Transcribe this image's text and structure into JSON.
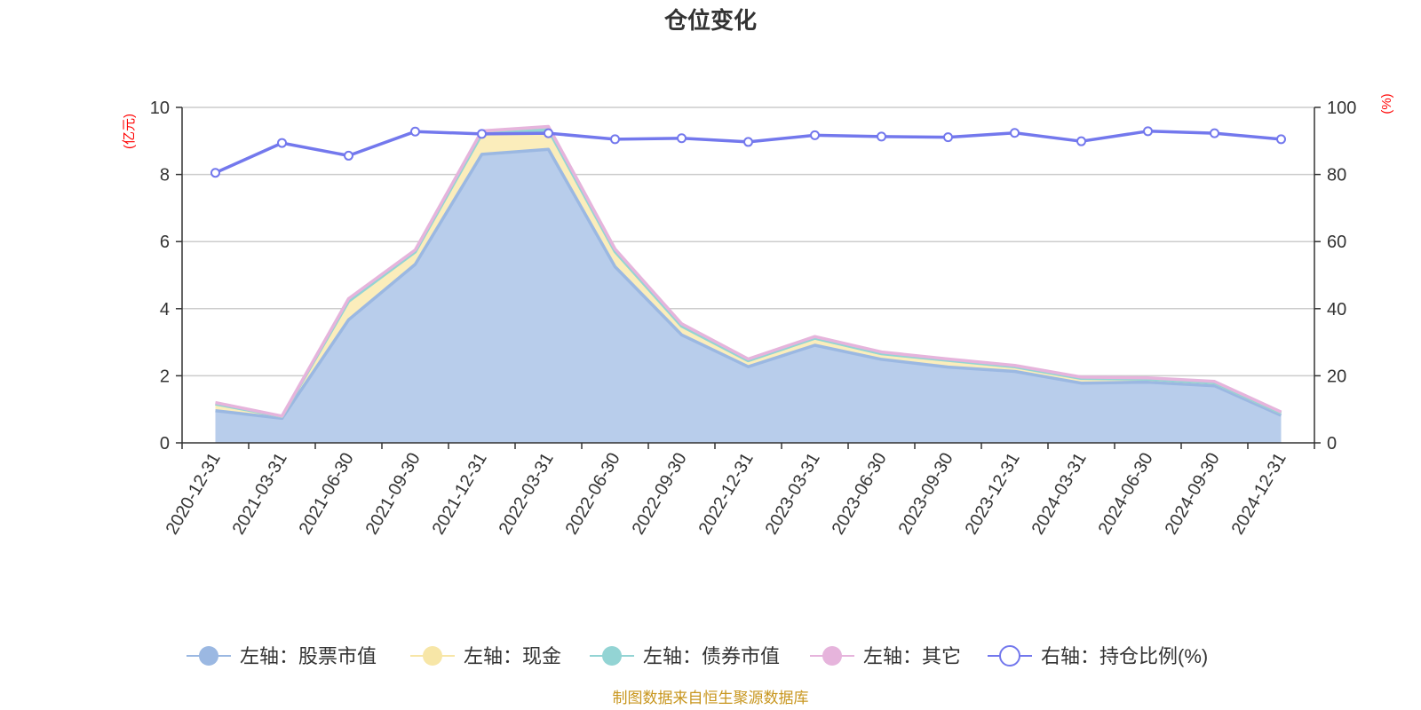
{
  "title": "仓位变化",
  "source": "制图数据来自恒生聚源数据库",
  "colors": {
    "stock": "#9bb8e2",
    "stock_fill": "#b8cdeb",
    "cash": "#f7e6a7",
    "cash_fill": "#fbedbb",
    "bond": "#93d4d4",
    "other": "#e6b4dc",
    "ratio": "#7378ed",
    "unit": "#ff0000"
  },
  "chart_data": {
    "type": "area",
    "title": "仓位变化",
    "categories": [
      "2020-12-31",
      "2021-03-31",
      "2021-06-30",
      "2021-09-30",
      "2021-12-31",
      "2022-03-31",
      "2022-06-30",
      "2022-09-30",
      "2022-12-31",
      "2023-03-31",
      "2023-06-30",
      "2023-09-30",
      "2023-12-31",
      "2024-03-31",
      "2024-06-30",
      "2024-09-30",
      "2024-12-31"
    ],
    "left_axis": {
      "unit": "(亿元)",
      "ylim": [
        0,
        10
      ],
      "ticks": [
        "0",
        "2",
        "4",
        "6",
        "8",
        "10"
      ]
    },
    "right_axis": {
      "unit": "(%)",
      "ylim": [
        0,
        100
      ],
      "ticks": [
        "0",
        "20",
        "40",
        "60",
        "80",
        "100"
      ]
    },
    "stacked": true,
    "grid": true,
    "legend_position": "bottom",
    "series": [
      {
        "name": "左轴：股票市值",
        "axis": "left",
        "values": [
          0.96,
          0.73,
          3.67,
          5.32,
          8.6,
          8.75,
          5.25,
          3.22,
          2.27,
          2.91,
          2.49,
          2.26,
          2.13,
          1.78,
          1.81,
          1.7,
          0.82
        ]
      },
      {
        "name": "左轴：现金",
        "axis": "left",
        "values": [
          0.2,
          0.06,
          0.55,
          0.37,
          0.6,
          0.58,
          0.45,
          0.26,
          0.18,
          0.21,
          0.17,
          0.2,
          0.14,
          0.14,
          0.09,
          0.09,
          0.07
        ]
      },
      {
        "name": "左轴：债券市值",
        "axis": "left",
        "values": [
          0,
          0,
          0,
          0,
          0,
          0,
          0,
          0,
          0,
          0,
          0,
          0,
          0,
          0,
          0,
          0,
          0
        ]
      },
      {
        "name": "左轴：其它",
        "axis": "left",
        "values": [
          0.04,
          0.01,
          0.08,
          0.06,
          0.1,
          0.1,
          0.08,
          0.07,
          0.05,
          0.05,
          0.05,
          0.04,
          0.04,
          0.04,
          0.04,
          0.04,
          0.03
        ]
      },
      {
        "name": "右轴：持仓比例(%)",
        "axis": "right",
        "type": "line",
        "values": [
          80.5,
          89.4,
          85.6,
          92.8,
          92.1,
          92.3,
          90.5,
          90.8,
          89.7,
          91.7,
          91.3,
          91.1,
          92.4,
          89.9,
          92.9,
          92.3,
          90.5
        ]
      }
    ]
  }
}
